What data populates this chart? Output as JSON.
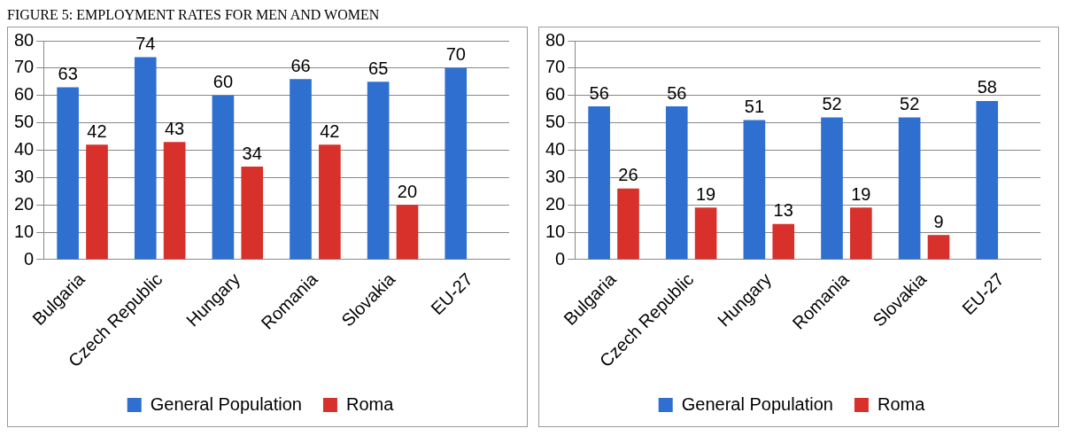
{
  "chart_data": [
    {
      "type": "bar",
      "title": "FIGURE 5: EMPLOYMENT RATES FOR MEN AND WOMEN",
      "categories": [
        "Bulgaria",
        "Czech Republic",
        "Hungary",
        "Romania",
        "Slovakia",
        "EU-27"
      ],
      "series": [
        {
          "name": "General Population",
          "color": "#2e6fd0",
          "values": [
            63,
            74,
            60,
            66,
            65,
            70
          ]
        },
        {
          "name": "Roma",
          "color": "#d8302a",
          "values": [
            42,
            43,
            34,
            42,
            20,
            null
          ]
        }
      ],
      "ylim": [
        0,
        80
      ],
      "yticks": [
        0,
        10,
        20,
        30,
        40,
        50,
        60,
        70,
        80
      ],
      "grid": "y",
      "legend": "bottom",
      "data_labels": true
    },
    {
      "type": "bar",
      "categories": [
        "Bulgaria",
        "Czech Republic",
        "Hungary",
        "Romania",
        "Slovakia",
        "EU-27"
      ],
      "series": [
        {
          "name": "General Population",
          "color": "#2e6fd0",
          "values": [
            56,
            56,
            51,
            52,
            52,
            58
          ]
        },
        {
          "name": "Roma",
          "color": "#d8302a",
          "values": [
            26,
            19,
            13,
            19,
            9,
            null
          ]
        }
      ],
      "ylim": [
        0,
        80
      ],
      "yticks": [
        0,
        10,
        20,
        30,
        40,
        50,
        60,
        70,
        80
      ],
      "grid": "y",
      "legend": "bottom",
      "data_labels": true
    }
  ]
}
